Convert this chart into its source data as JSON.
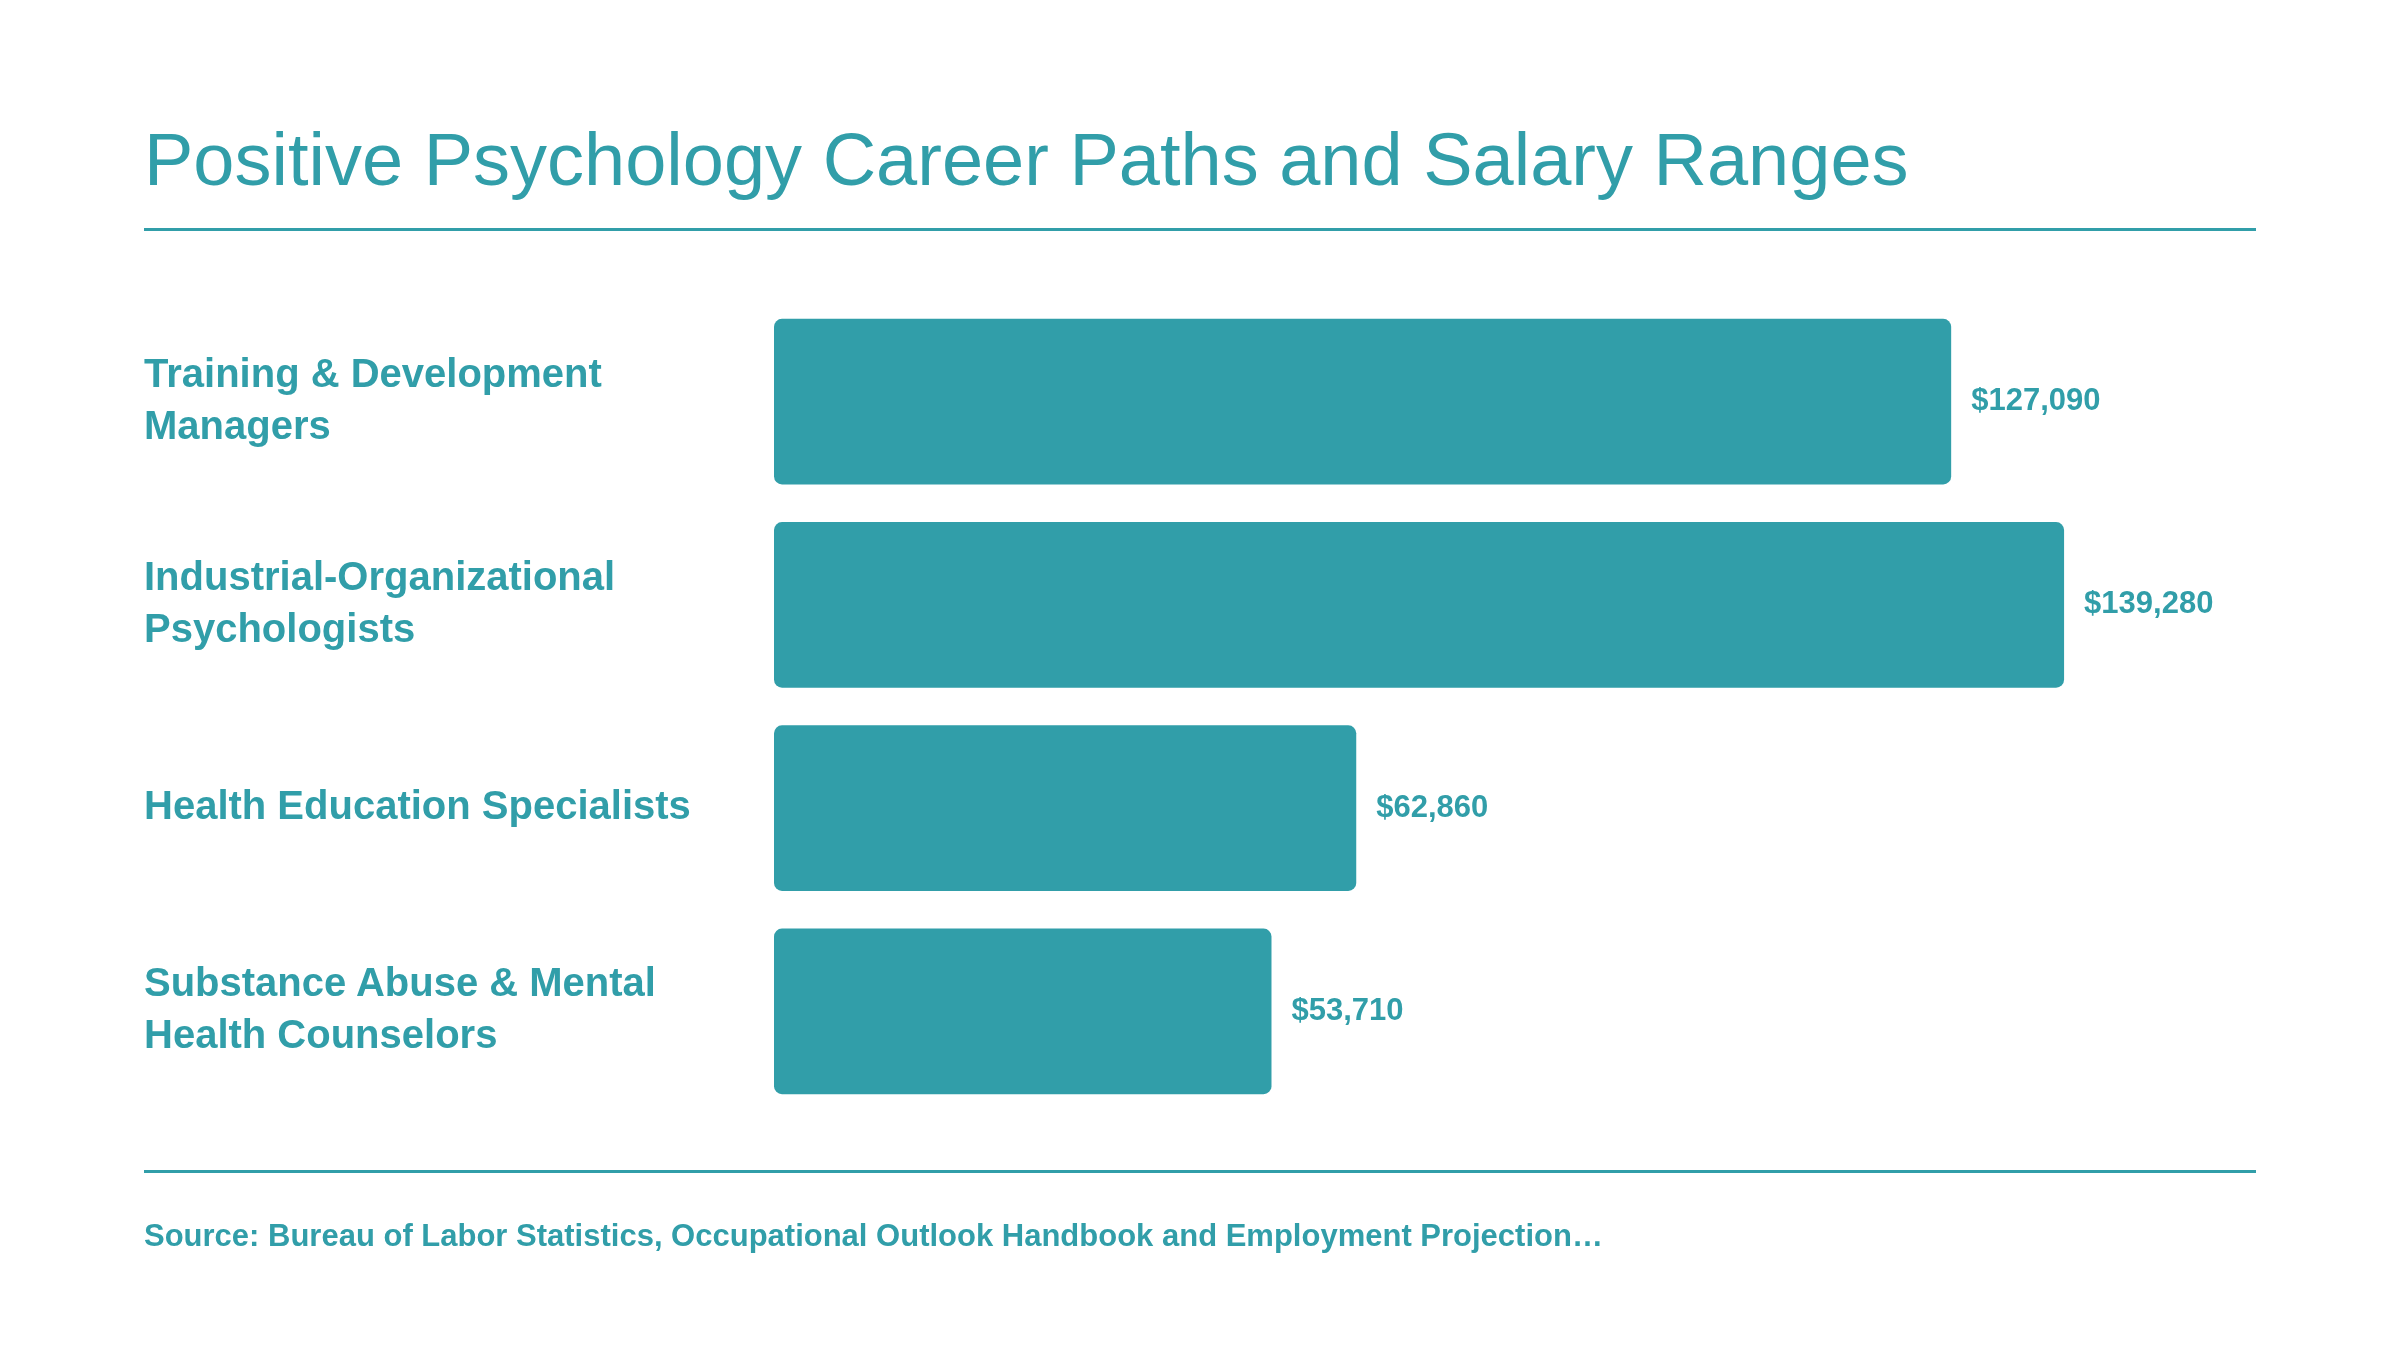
{
  "chart_data": {
    "type": "bar",
    "orientation": "horizontal",
    "title": "Positive Psychology Career Paths and Salary Ranges",
    "categories": [
      "Training & Development Managers",
      "Industrial-Organizational Psychologists",
      "Health Education Specialists",
      "Substance Abuse & Mental Health Counselors"
    ],
    "values": [
      127090,
      139280,
      62860,
      53710
    ],
    "value_labels": [
      "$127,090",
      "$139,280",
      "$62,860",
      "$53,710"
    ],
    "color": "#319ea9",
    "annotations": [
      "Source: Bureau of Labor Statistics, Occupational Outlook Handbook and Employment Projection…"
    ]
  }
}
